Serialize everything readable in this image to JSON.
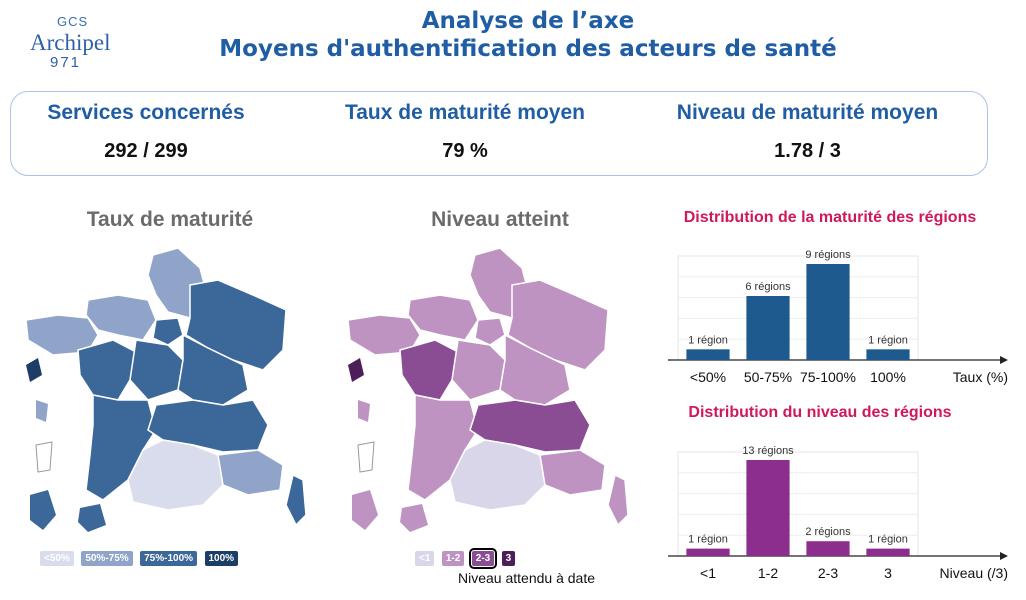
{
  "logo": {
    "top": "GCS",
    "name": "Archipel",
    "number": "971"
  },
  "header": {
    "title_line1": "Analyse de l’axe",
    "title_line2": "Moyens d'authentification des acteurs de santé"
  },
  "kpis": [
    {
      "label": "Services concernés",
      "value": "292 / 299"
    },
    {
      "label": "Taux de maturité moyen",
      "value": "79 %"
    },
    {
      "label": "Niveau de maturité moyen",
      "value": "1.78 / 3"
    }
  ],
  "maps": {
    "left_title": "Taux de maturité",
    "right_title": "Niveau atteint",
    "left_legend": [
      {
        "label": "<50%",
        "color": "#d9dcec"
      },
      {
        "label": "50%-75%",
        "color": "#8fa4c8"
      },
      {
        "label": "75%-100%",
        "color": "#3b6898"
      },
      {
        "label": "100%",
        "color": "#1c3d66"
      }
    ],
    "right_legend": [
      {
        "label": "<1",
        "color": "#d9d6ea"
      },
      {
        "label": "1-2",
        "color": "#be93c1"
      },
      {
        "label": "2-3",
        "color": "#8a4d94"
      },
      {
        "label": "3",
        "color": "#4e1e58"
      }
    ],
    "right_note": "Niveau attendu à date",
    "colors": {
      "blue_main": "#3b6898",
      "blue_light": "#8fa4c8",
      "blue_pale": "#d9dcec",
      "blue_dark": "#1c3d66",
      "purple_main": "#be93c1",
      "purple_mid": "#8a4d94",
      "purple_pale": "#d9d6ea",
      "purple_dark": "#4e1e58"
    }
  },
  "chart_data": [
    {
      "type": "bar",
      "title": "Distribution de la maturité des régions",
      "categories": [
        "<50%",
        "50-75%",
        "75-100%",
        "100%"
      ],
      "values": [
        1,
        6,
        9,
        1
      ],
      "data_labels": [
        "1 région",
        "6 régions",
        "9 régions",
        "1 région"
      ],
      "xlabel": "Taux (%)",
      "ylabel": "",
      "ylim": [
        0,
        9
      ],
      "grid": true,
      "color": "#1f5a8f"
    },
    {
      "type": "bar",
      "title": "Distribution du niveau des régions",
      "categories": [
        "<1",
        "1-2",
        "2-3",
        "3"
      ],
      "values": [
        1,
        13,
        2,
        1
      ],
      "data_labels": [
        "1 région",
        "13 régions",
        "2 régions",
        "1 région"
      ],
      "xlabel": "Niveau (/3)",
      "ylabel": "",
      "ylim": [
        0,
        13
      ],
      "grid": true,
      "color": "#8b2e8d"
    }
  ]
}
